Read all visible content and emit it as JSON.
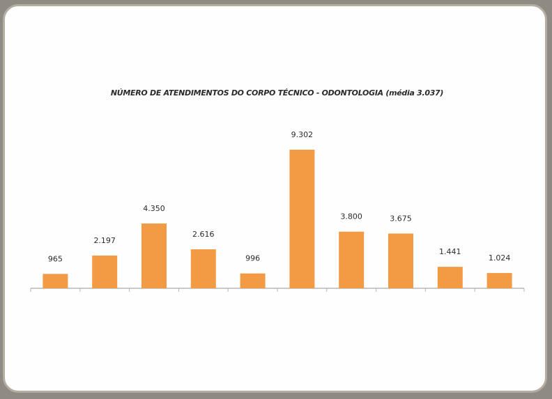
{
  "chart_data": {
    "type": "bar",
    "title": "NÚMERO DE ATENDIMENTOS DO CORPO TÉCNICO - ODONTOLOGIA (média 3.037)",
    "categories": [
      "",
      "",
      "",
      "",
      "",
      "",
      "",
      "",
      "",
      ""
    ],
    "values": [
      965,
      2197,
      4350,
      2616,
      996,
      9302,
      3800,
      3675,
      1441,
      1024
    ],
    "value_labels": [
      "965",
      "2.197",
      "4.350",
      "2.616",
      "996",
      "9.302",
      "3.800",
      "3.675",
      "1.441",
      "1.024"
    ],
    "xlabel": "",
    "ylabel": "",
    "ylim": [
      0,
      10000
    ],
    "grid": false,
    "legend": "none",
    "bar_color": "#f39a45",
    "axis_color": "#b7b7b7"
  }
}
